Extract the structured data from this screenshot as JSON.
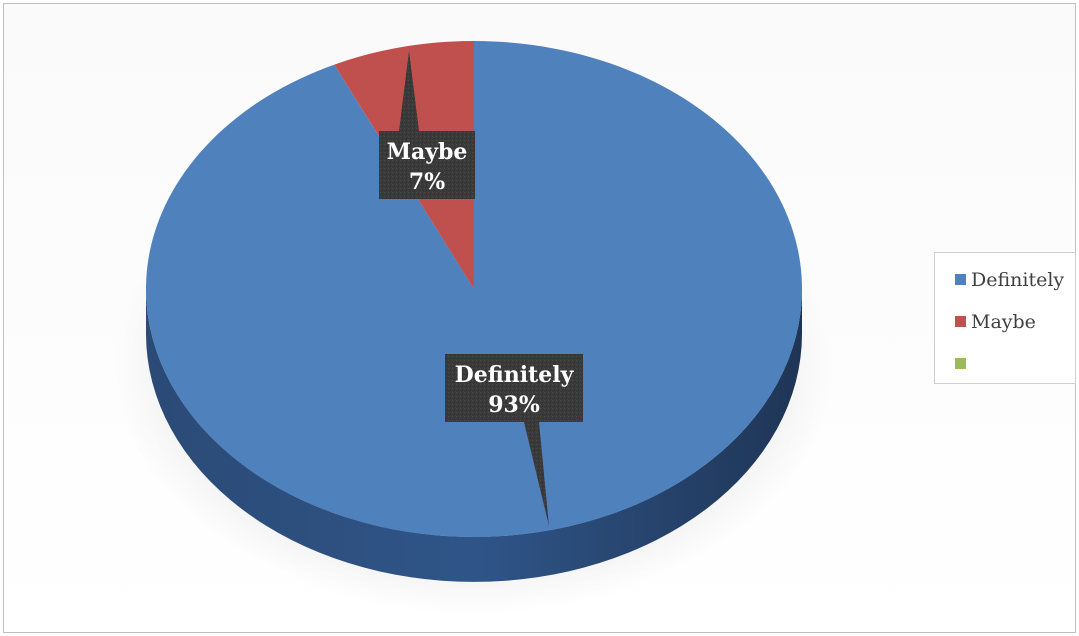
{
  "chart_data": {
    "type": "pie",
    "categories": [
      "Definitely",
      "Maybe",
      ""
    ],
    "values": [
      93,
      7,
      0
    ],
    "colors": [
      "#4f81bd",
      "#c0504d",
      "#9bbb59"
    ],
    "data_labels": [
      {
        "name": "Definitely",
        "value": "93%"
      },
      {
        "name": "Maybe",
        "value": "7%"
      }
    ],
    "legend": {
      "position": "right",
      "entries": [
        "Definitely",
        "Maybe",
        ""
      ]
    },
    "three_d": true,
    "title": ""
  }
}
